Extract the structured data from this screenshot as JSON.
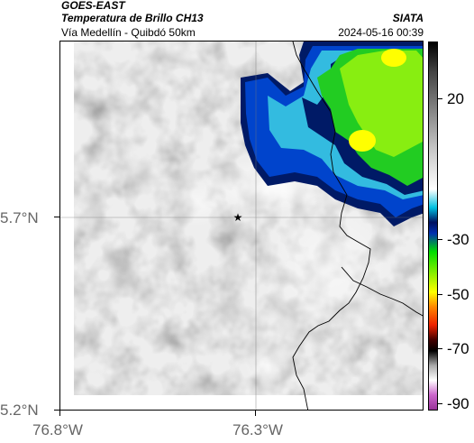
{
  "header": {
    "satellite": "GOES-EAST",
    "product": "Temperatura de Brillo CH13",
    "region": "Vía Medellín - Quibdó 50km",
    "agency": "SIATA",
    "datetime": "2024-05-16 00:39"
  },
  "axes": {
    "lat_labels": [
      "5.7°N",
      "5.2°N"
    ],
    "lon_labels": [
      "76.8°W",
      "76.3°W"
    ]
  },
  "colorbar": {
    "labels": [
      "20",
      "-30",
      "-50",
      "-70",
      "-90"
    ],
    "colors": {
      "magenta": "#cc66cc",
      "white": "#ffffff",
      "black": "#000000",
      "red": "#ee2200",
      "yellow": "#ffff00",
      "green": "#00dd00",
      "cyan": "#00c0e0",
      "blue": "#0030b0",
      "navy": "#001060",
      "gray": "#8c8c8c"
    }
  },
  "map": {
    "marker_icon": "star-icon",
    "cloud_colors": {
      "navy": "#001a66",
      "blue": "#0044cc",
      "cyan": "#33bbe0",
      "green": "#22cc22",
      "lime": "#88ee11",
      "yellow": "#ffff00"
    }
  }
}
